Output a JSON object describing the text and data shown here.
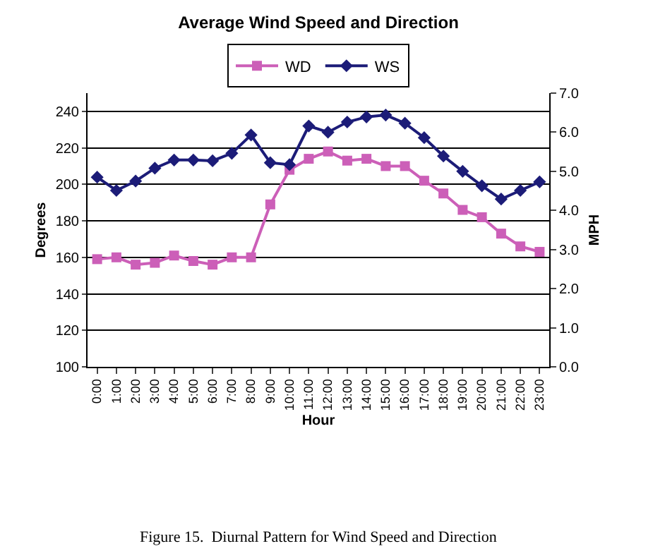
{
  "chart_data": {
    "type": "line",
    "title": "Average Wind Speed and Direction",
    "xlabel": "Hour",
    "ylabel": "Degrees",
    "y2label": "MPH",
    "categories": [
      "0:00",
      "1:00",
      "2:00",
      "3:00",
      "4:00",
      "5:00",
      "6:00",
      "7:00",
      "8:00",
      "9:00",
      "10:00",
      "11:00",
      "12:00",
      "13:00",
      "14:00",
      "15:00",
      "16:00",
      "17:00",
      "18:00",
      "19:00",
      "20:00",
      "21:00",
      "22:00",
      "23:00"
    ],
    "series": [
      {
        "name": "WD",
        "color": "#cc5fb8",
        "marker": "square",
        "values": [
          159,
          160,
          156,
          157,
          161,
          158,
          156,
          160,
          160,
          189,
          208,
          214,
          218,
          213,
          214,
          210,
          210,
          202,
          195,
          186,
          182,
          173,
          166,
          163
        ]
      },
      {
        "name": "WS",
        "color": "#1c1c78",
        "marker": "diamond",
        "axis": "y2",
        "values": [
          4.85,
          4.51,
          4.75,
          5.08,
          5.29,
          5.29,
          5.27,
          5.46,
          5.93,
          5.22,
          5.17,
          6.16,
          6.0,
          6.26,
          6.39,
          6.44,
          6.23,
          5.86,
          5.39,
          5.0,
          4.63,
          4.29,
          4.51,
          4.73
        ]
      }
    ],
    "ylim": [
      100,
      250
    ],
    "yticks": [
      100,
      120,
      140,
      160,
      180,
      200,
      220,
      240
    ],
    "y2lim": [
      0,
      7
    ],
    "y2ticks": [
      {
        "value": 0,
        "label": "0.0"
      },
      {
        "value": 1,
        "label": "1.0"
      },
      {
        "value": 2,
        "label": "2.0"
      },
      {
        "value": 3,
        "label": "3.0"
      },
      {
        "value": 4,
        "label": "4.0"
      },
      {
        "value": 5,
        "label": "5.0"
      },
      {
        "value": 6,
        "label": "6.0"
      },
      {
        "value": 7,
        "label": "7.0"
      }
    ],
    "grid": "y",
    "legend": "top",
    "annotations": [
      "Figure 15.  Diurnal Pattern for Wind Speed and Direction"
    ]
  }
}
